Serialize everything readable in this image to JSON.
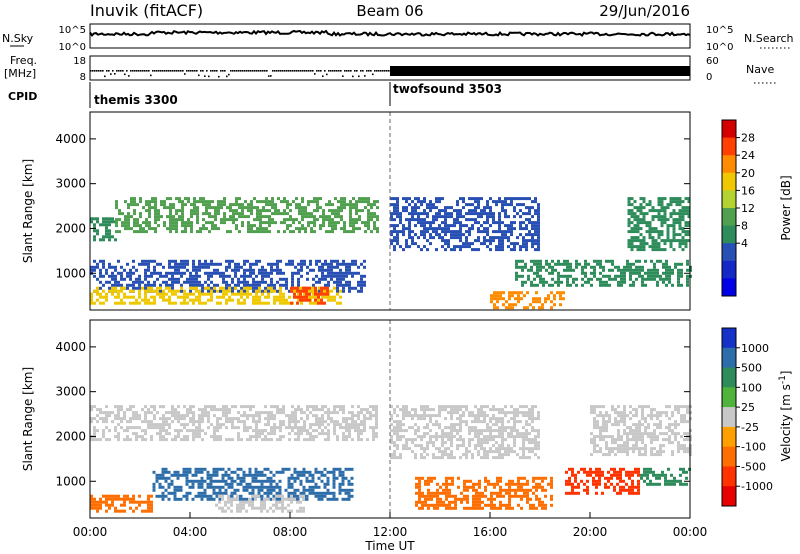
{
  "header": {
    "station": "Inuvik (fitACF)",
    "beam": "Beam 06",
    "date": "29/Jun/2016"
  },
  "noise_panel": {
    "left_label": "N.Sky",
    "right_label": "N.Search",
    "ticks_left": [
      "10^5",
      "10^0"
    ],
    "ticks_right": [
      "10^5",
      "10^0"
    ]
  },
  "freq_panel": {
    "left_label_line1": "Freq.",
    "left_label_line2": "[MHz]",
    "ticks_left": [
      "18",
      "8"
    ],
    "right_label": "Nave",
    "ticks_right": [
      "60",
      "0"
    ]
  },
  "cpid": {
    "label": "CPID",
    "entries": [
      {
        "name": "themis 3300",
        "start_hour": 0
      },
      {
        "name": "twofsound 3503",
        "start_hour": 12
      }
    ]
  },
  "chart_data": [
    {
      "type": "heatmap",
      "title": "",
      "ylabel": "Slant Range [km]",
      "xlabel": "",
      "x_range_hours": [
        0,
        24
      ],
      "ylim": [
        180,
        4600
      ],
      "yticks": [
        1000,
        2000,
        3000,
        4000
      ],
      "colorbar": {
        "label": "Power [dB]",
        "ticks": [
          "28",
          "24",
          "20",
          "16",
          "12",
          "8",
          "4"
        ],
        "colors": [
          "#d40000",
          "#ff4000",
          "#ff8c00",
          "#f0c800",
          "#b4d232",
          "#50a050",
          "#2d8c5a",
          "#2850b4",
          "#1428c8",
          "#0000e6"
        ]
      },
      "echo_regions": [
        {
          "t0": 0.0,
          "t1": 1.0,
          "r0": 1750,
          "r1": 2250,
          "level": 12
        },
        {
          "t0": 1.0,
          "t1": 11.5,
          "r0": 1900,
          "r1": 2700,
          "level": 16
        },
        {
          "t0": 0.0,
          "t1": 11.0,
          "r0": 600,
          "r1": 1300,
          "level": 10
        },
        {
          "t0": 0.0,
          "t1": 10.0,
          "r0": 300,
          "r1": 700,
          "level": 24
        },
        {
          "t0": 8.0,
          "t1": 9.5,
          "r0": 300,
          "r1": 700,
          "level": 30
        },
        {
          "t0": 12.0,
          "t1": 18.0,
          "r0": 1500,
          "r1": 2700,
          "level": 10
        },
        {
          "t0": 16.0,
          "t1": 19.0,
          "r0": 250,
          "r1": 600,
          "level": 26
        },
        {
          "t0": 17.0,
          "t1": 24.0,
          "r0": 700,
          "r1": 1300,
          "level": 14
        },
        {
          "t0": 21.5,
          "t1": 24.0,
          "r0": 1500,
          "r1": 2700,
          "level": 12
        }
      ]
    },
    {
      "type": "heatmap",
      "title": "",
      "ylabel": "Slant Range [km]",
      "xlabel": "Time UT",
      "x_range_hours": [
        0,
        24
      ],
      "xticks": [
        "00:00",
        "04:00",
        "08:00",
        "12:00",
        "16:00",
        "20:00",
        "00:00"
      ],
      "ylim": [
        180,
        4600
      ],
      "yticks": [
        1000,
        2000,
        3000,
        4000
      ],
      "colorbar": {
        "label": "Velocity [m s^-1]",
        "ticks": [
          "1000",
          "500",
          "100",
          "25",
          "-25",
          "-100",
          "-500",
          "-1000"
        ],
        "colors": [
          "#1432c8",
          "#2d6eaa",
          "#2d8c5a",
          "#50b43c",
          "#c8c8c8",
          "#ffa000",
          "#ff6e00",
          "#ff3200",
          "#e60000"
        ]
      },
      "echo_regions": [
        {
          "t0": 0.0,
          "t1": 11.5,
          "r0": 1900,
          "r1": 2700,
          "velocity": 0
        },
        {
          "t0": 0.0,
          "t1": 2.5,
          "r0": 300,
          "r1": 700,
          "velocity": -150
        },
        {
          "t0": 2.5,
          "t1": 10.5,
          "r0": 600,
          "r1": 1300,
          "velocity": 300
        },
        {
          "t0": 5.0,
          "t1": 8.5,
          "r0": 300,
          "r1": 700,
          "velocity": 0
        },
        {
          "t0": 12.0,
          "t1": 18.0,
          "r0": 1500,
          "r1": 2700,
          "velocity": 0
        },
        {
          "t0": 13.0,
          "t1": 18.5,
          "r0": 400,
          "r1": 1100,
          "velocity": -150
        },
        {
          "t0": 19.0,
          "t1": 22.0,
          "r0": 700,
          "r1": 1300,
          "velocity": -600
        },
        {
          "t0": 22.0,
          "t1": 24.0,
          "r0": 900,
          "r1": 1300,
          "velocity": 200
        },
        {
          "t0": 20.0,
          "t1": 24.0,
          "r0": 1600,
          "r1": 2700,
          "velocity": 0
        }
      ]
    }
  ]
}
